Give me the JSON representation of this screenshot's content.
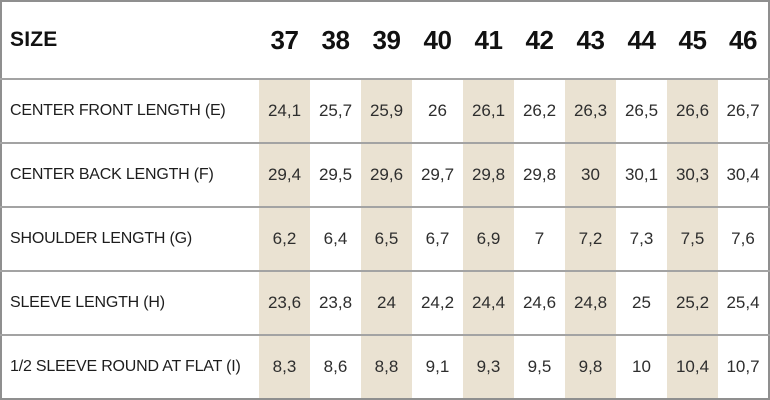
{
  "chart_data": {
    "type": "table",
    "header": {
      "label": "SIZE",
      "sizes": [
        "37",
        "38",
        "39",
        "40",
        "41",
        "42",
        "43",
        "44",
        "45",
        "46"
      ]
    },
    "rows": [
      {
        "label": "CENTER FRONT LENGTH (E)",
        "values": [
          "24,1",
          "25,7",
          "25,9",
          "26",
          "26,1",
          "26,2",
          "26,3",
          "26,5",
          "26,6",
          "26,7"
        ]
      },
      {
        "label": "CENTER BACK LENGTH (F)",
        "values": [
          "29,4",
          "29,5",
          "29,6",
          "29,7",
          "29,8",
          "29,8",
          "30",
          "30,1",
          "30,3",
          "30,4"
        ]
      },
      {
        "label": "SHOULDER LENGTH (G)",
        "values": [
          "6,2",
          "6,4",
          "6,5",
          "6,7",
          "6,9",
          "7",
          "7,2",
          "7,3",
          "7,5",
          "7,6"
        ]
      },
      {
        "label": "SLEEVE LENGTH (H)",
        "values": [
          "23,6",
          "23,8",
          "24",
          "24,2",
          "24,4",
          "24,6",
          "24,8",
          "25",
          "25,2",
          "25,4"
        ]
      },
      {
        "label": "1/2 SLEEVE ROUND AT FLAT (I)",
        "values": [
          "8,3",
          "8,6",
          "8,8",
          "9,1",
          "9,3",
          "9,5",
          "9,8",
          "10",
          "10,4",
          "10,7"
        ]
      }
    ],
    "striped_size_columns": [
      "37",
      "39",
      "41",
      "43",
      "45"
    ],
    "layout": {
      "grid": "horizontal row separators only, no vertical cell borders",
      "stripe_scope": "data rows only, header unshaded"
    },
    "colors": {
      "stripe": "#EAE2D2",
      "border_outer": "#8F8F8F",
      "border_inner": "#A3A3A3",
      "header_text": "#111111",
      "label_text": "#1D1D1D",
      "value_text": "#2E2E2E",
      "background": "#FFFFFF"
    }
  }
}
